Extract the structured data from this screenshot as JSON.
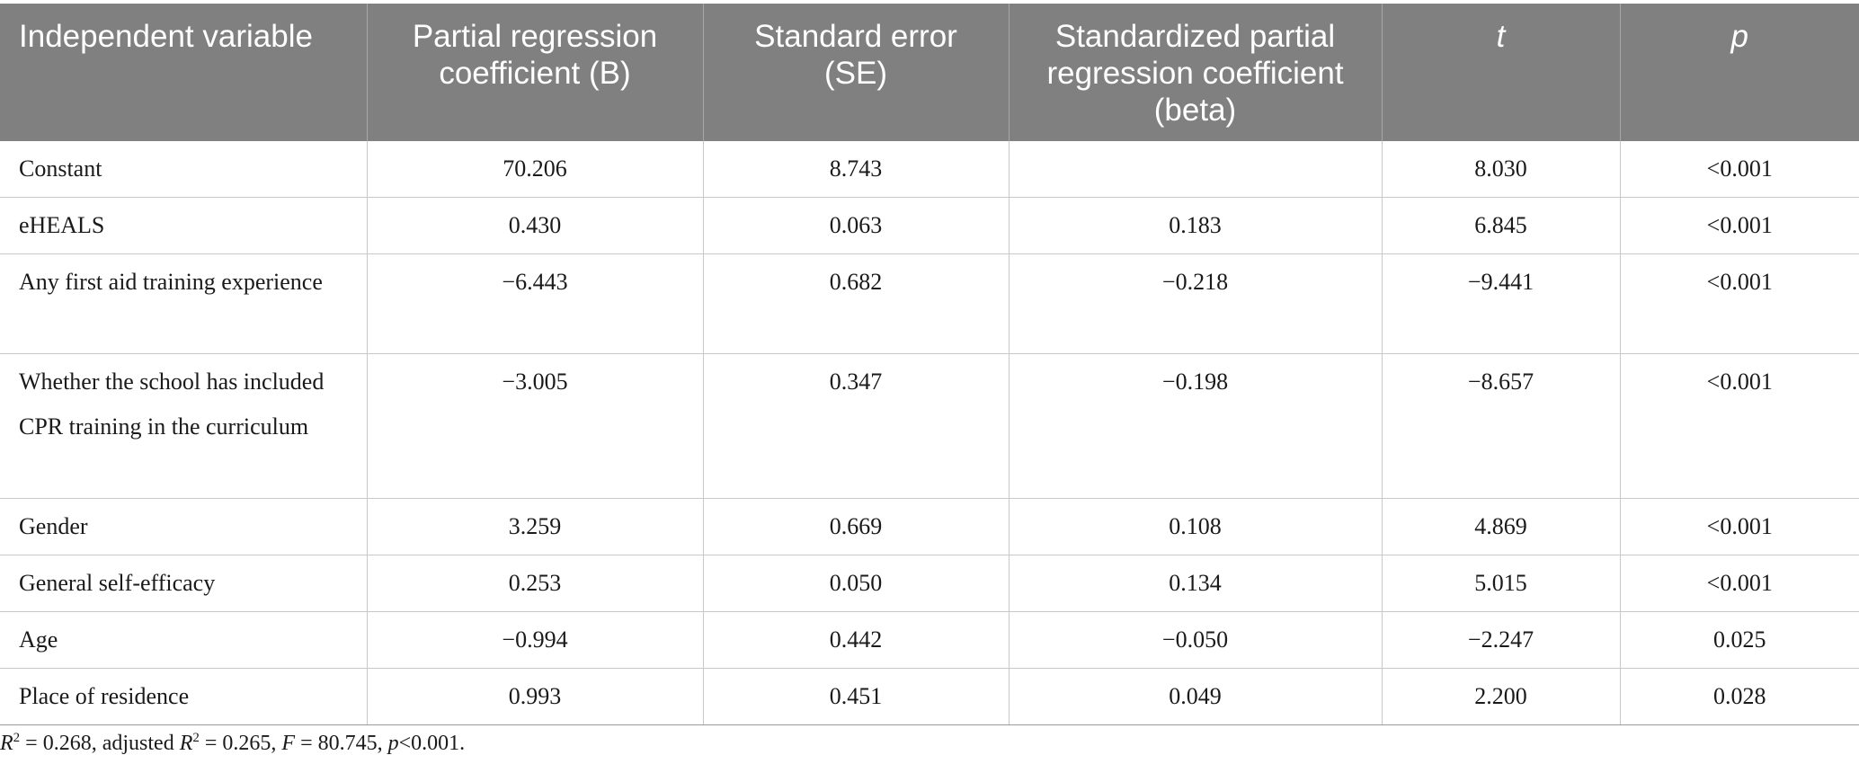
{
  "table": {
    "headers": [
      "Independent variable",
      "Partial regression coefficient (B)",
      "Standard error (SE)",
      "Standardized partial regression coefficient (beta)",
      "t",
      "p"
    ],
    "rows": [
      [
        "Constant",
        "70.206",
        "8.743",
        "",
        "8.030",
        "<0.001"
      ],
      [
        "eHEALS",
        "0.430",
        "0.063",
        "0.183",
        "6.845",
        "<0.001"
      ],
      [
        "Any first aid training experience",
        "−6.443",
        "0.682",
        "−0.218",
        "−9.441",
        "<0.001"
      ],
      [
        "Whether the school has included CPR training in the curriculum",
        "−3.005",
        "0.347",
        "−0.198",
        "−8.657",
        "<0.001"
      ],
      [
        "Gender",
        "3.259",
        "0.669",
        "0.108",
        "4.869",
        "<0.001"
      ],
      [
        "General self-efficacy",
        "0.253",
        "0.050",
        "0.134",
        "5.015",
        "<0.001"
      ],
      [
        "Age",
        "−0.994",
        "0.442",
        "−0.050",
        "−2.247",
        "0.025"
      ],
      [
        "Place of residence",
        "0.993",
        "0.451",
        "0.049",
        "2.200",
        "0.028"
      ]
    ]
  },
  "footnote": {
    "r2_symbol": "R",
    "r2_sup": "2",
    "r2_value": " = 0.268, adjusted ",
    "adj_r2_symbol": "R",
    "adj_r2_sup": "2",
    "adj_r2_value": " = 0.265, ",
    "f_symbol": "F",
    "f_value": " = 80.745, ",
    "p_symbol": "p",
    "p_value": "<0.001."
  }
}
